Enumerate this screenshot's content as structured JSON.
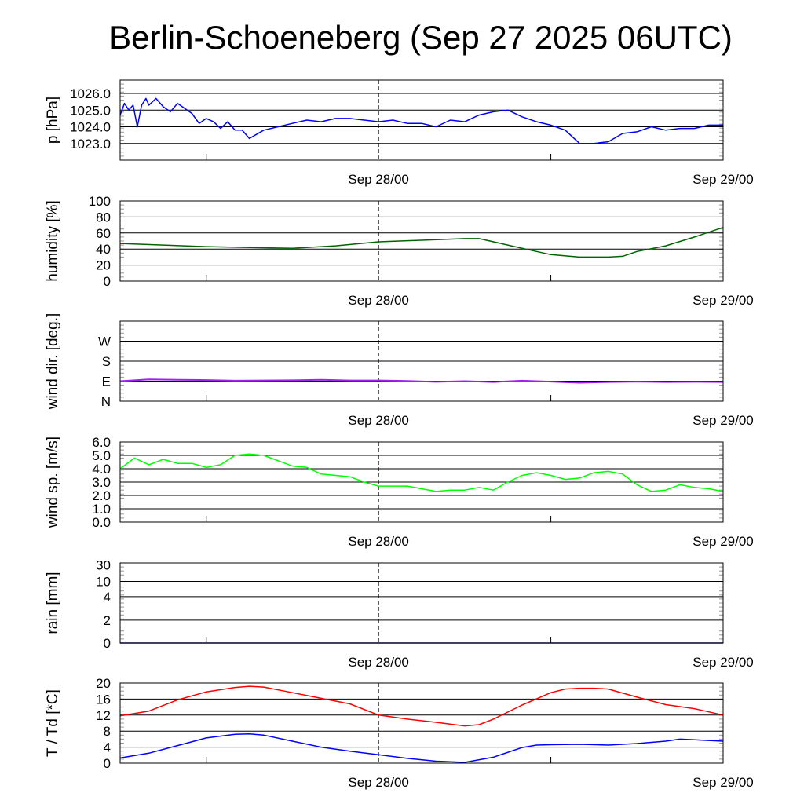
{
  "title": "Berlin-Schoeneberg (Sep 27 2025 06UTC)",
  "chart_data": [
    {
      "type": "line",
      "id": "pressure",
      "ylabel": "p [hPa]",
      "ylim": [
        1022,
        1026.8
      ],
      "yticks": [
        1023,
        1024,
        1025,
        1026
      ],
      "ytick_labels": [
        "1023.0",
        "1024.0",
        "1025.0",
        "1026.0"
      ],
      "xlim_hours": [
        0,
        42
      ],
      "xtick_labels": [
        {
          "hour": 18,
          "label": "Sep 28/00"
        },
        {
          "hour": 42,
          "label": "Sep 29/00"
        }
      ],
      "series": [
        {
          "name": "pressure",
          "color": "#0000ff",
          "x": [
            0,
            0.3,
            0.6,
            0.9,
            1.2,
            1.5,
            1.8,
            2,
            2.5,
            3,
            3.5,
            4,
            4.5,
            5,
            5.5,
            6,
            6.5,
            7,
            7.5,
            8,
            8.5,
            9,
            10,
            11,
            12,
            13,
            14,
            15,
            16,
            17,
            18,
            19,
            20,
            21,
            22,
            23,
            24,
            25,
            26,
            27,
            28,
            29,
            30,
            31,
            32,
            33,
            34,
            35,
            36,
            37,
            38,
            39,
            40,
            41,
            42
          ],
          "y": [
            1024.7,
            1025.4,
            1025.0,
            1025.3,
            1024.0,
            1025.3,
            1025.7,
            1025.3,
            1025.7,
            1025.2,
            1024.9,
            1025.4,
            1025.1,
            1024.8,
            1024.2,
            1024.5,
            1024.3,
            1023.9,
            1024.3,
            1023.8,
            1023.8,
            1023.3,
            1023.8,
            1024.0,
            1024.2,
            1024.4,
            1024.3,
            1024.5,
            1024.5,
            1024.4,
            1024.3,
            1024.4,
            1024.2,
            1024.2,
            1024.0,
            1024.4,
            1024.3,
            1024.7,
            1024.9,
            1025.0,
            1024.6,
            1024.3,
            1024.1,
            1023.8,
            1023.0,
            1023.0,
            1023.1,
            1023.6,
            1023.7,
            1024.0,
            1023.8,
            1023.9,
            1023.9,
            1024.1,
            1024.1
          ]
        }
      ]
    },
    {
      "type": "line",
      "id": "humidity",
      "ylabel": "humidity [%]",
      "ylim": [
        0,
        100
      ],
      "yticks": [
        0,
        20,
        40,
        60,
        80,
        100
      ],
      "ytick_labels": [
        "0",
        "20",
        "40",
        "60",
        "80",
        "100"
      ],
      "xlim_hours": [
        0,
        42
      ],
      "xtick_labels": [
        {
          "hour": 18,
          "label": "Sep 28/00"
        },
        {
          "hour": 42,
          "label": "Sep 29/00"
        }
      ],
      "series": [
        {
          "name": "humidity",
          "color": "#006400",
          "x": [
            0,
            3,
            6,
            9,
            12,
            15,
            18,
            21,
            24,
            25,
            27,
            29,
            30,
            32,
            34,
            35,
            36,
            38,
            40,
            42
          ],
          "y": [
            47,
            45,
            43,
            42,
            41,
            44,
            49,
            51,
            53,
            53,
            45,
            37,
            33,
            30,
            30,
            31,
            37,
            44,
            55,
            67
          ]
        }
      ]
    },
    {
      "type": "line",
      "id": "wind_dir",
      "ylabel": "wind dir. [deg.]",
      "ylim": [
        0,
        360
      ],
      "yticks": [
        0,
        90,
        180,
        270
      ],
      "ytick_labels": [
        "N",
        "E",
        "S",
        "W"
      ],
      "xlim_hours": [
        0,
        42
      ],
      "xtick_labels": [
        {
          "hour": 18,
          "label": "Sep 28/00"
        },
        {
          "hour": 42,
          "label": "Sep 29/00"
        }
      ],
      "series": [
        {
          "name": "wind direction",
          "color": "#a020f0",
          "x": [
            0,
            2,
            4,
            6,
            8,
            10,
            12,
            14,
            16,
            18,
            20,
            22,
            24,
            26,
            28,
            30,
            32,
            34,
            36,
            38,
            40,
            42
          ],
          "y": [
            90,
            98,
            96,
            95,
            92,
            93,
            94,
            96,
            93,
            93,
            91,
            87,
            90,
            86,
            92,
            88,
            83,
            86,
            88,
            86,
            87,
            86
          ]
        }
      ]
    },
    {
      "type": "line",
      "id": "wind_speed",
      "ylabel": "wind sp. [m/s]",
      "ylim": [
        0,
        6
      ],
      "yticks": [
        0,
        1,
        2,
        3,
        4,
        5,
        6
      ],
      "ytick_labels": [
        "0.0",
        "1.0",
        "2.0",
        "3.0",
        "4.0",
        "5.0",
        "6.0"
      ],
      "xlim_hours": [
        0,
        42
      ],
      "xtick_labels": [
        {
          "hour": 18,
          "label": "Sep 28/00"
        },
        {
          "hour": 42,
          "label": "Sep 29/00"
        }
      ],
      "series": [
        {
          "name": "wind speed",
          "color": "#00ff00",
          "x": [
            0,
            1,
            2,
            3,
            4,
            5,
            6,
            7,
            8,
            9,
            10,
            11,
            12,
            13,
            14,
            15,
            16,
            17,
            18,
            19,
            20,
            21,
            22,
            23,
            24,
            25,
            26,
            27,
            28,
            29,
            30,
            31,
            32,
            33,
            34,
            35,
            36,
            37,
            38,
            39,
            40,
            41,
            42
          ],
          "y": [
            4.0,
            4.8,
            4.3,
            4.7,
            4.4,
            4.4,
            4.1,
            4.3,
            5.0,
            5.1,
            5.0,
            4.6,
            4.2,
            4.1,
            3.6,
            3.5,
            3.4,
            3.0,
            2.7,
            2.7,
            2.7,
            2.5,
            2.3,
            2.4,
            2.4,
            2.6,
            2.4,
            3.0,
            3.5,
            3.7,
            3.5,
            3.2,
            3.3,
            3.7,
            3.8,
            3.6,
            2.8,
            2.3,
            2.4,
            2.8,
            2.6,
            2.5,
            2.3
          ]
        }
      ]
    },
    {
      "type": "line",
      "id": "rain",
      "ylabel": "rain [mm]",
      "ylim": [
        0,
        30
      ],
      "yticks": [
        0,
        2,
        4,
        10,
        30
      ],
      "ytick_labels": [
        "0",
        "2",
        "4",
        "10",
        "30"
      ],
      "xlim_hours": [
        0,
        42
      ],
      "xtick_labels": [
        {
          "hour": 18,
          "label": "Sep 28/00"
        },
        {
          "hour": 42,
          "label": "Sep 29/00"
        }
      ],
      "series": [
        {
          "name": "rain",
          "color": "#00008b",
          "x": [
            0,
            42
          ],
          "y": [
            0,
            0
          ]
        }
      ]
    },
    {
      "type": "line",
      "id": "temperature",
      "ylabel": "T / Td [*C]",
      "ylim": [
        0,
        20
      ],
      "yticks": [
        0,
        4,
        8,
        12,
        16,
        20
      ],
      "ytick_labels": [
        "0",
        "4",
        "8",
        "12",
        "16",
        "20"
      ],
      "xlim_hours": [
        0,
        42
      ],
      "xtick_labels": [
        {
          "hour": 18,
          "label": "Sep 28/00"
        },
        {
          "hour": 42,
          "label": "Sep 29/00"
        }
      ],
      "series": [
        {
          "name": "T",
          "color": "#ff0000",
          "x": [
            0,
            2,
            4,
            6,
            8,
            9,
            10,
            12,
            14,
            16,
            18,
            20,
            22,
            24,
            25,
            26,
            28,
            30,
            31,
            32,
            33,
            34,
            36,
            38,
            40,
            41,
            42
          ],
          "y": [
            11.8,
            13,
            15.8,
            17.8,
            18.9,
            19.2,
            19,
            17.6,
            16.2,
            14.8,
            12,
            11,
            10.2,
            9.3,
            9.6,
            11,
            14.5,
            17.6,
            18.5,
            18.7,
            18.7,
            18.5,
            16.5,
            14.6,
            13.6,
            12.8,
            12
          ]
        },
        {
          "name": "Td",
          "color": "#0000ff",
          "x": [
            0,
            2,
            4,
            6,
            8,
            9,
            10,
            12,
            14,
            16,
            18,
            20,
            22,
            24,
            26,
            28,
            29,
            30,
            32,
            34,
            36,
            38,
            39,
            42
          ],
          "y": [
            1.3,
            2.5,
            4.4,
            6.3,
            7.2,
            7.3,
            7.0,
            5.5,
            4.0,
            3.0,
            2.1,
            1.2,
            0.5,
            0.2,
            1.5,
            3.9,
            4.5,
            4.6,
            4.7,
            4.5,
            4.9,
            5.5,
            6.0,
            5.5
          ]
        }
      ]
    }
  ]
}
